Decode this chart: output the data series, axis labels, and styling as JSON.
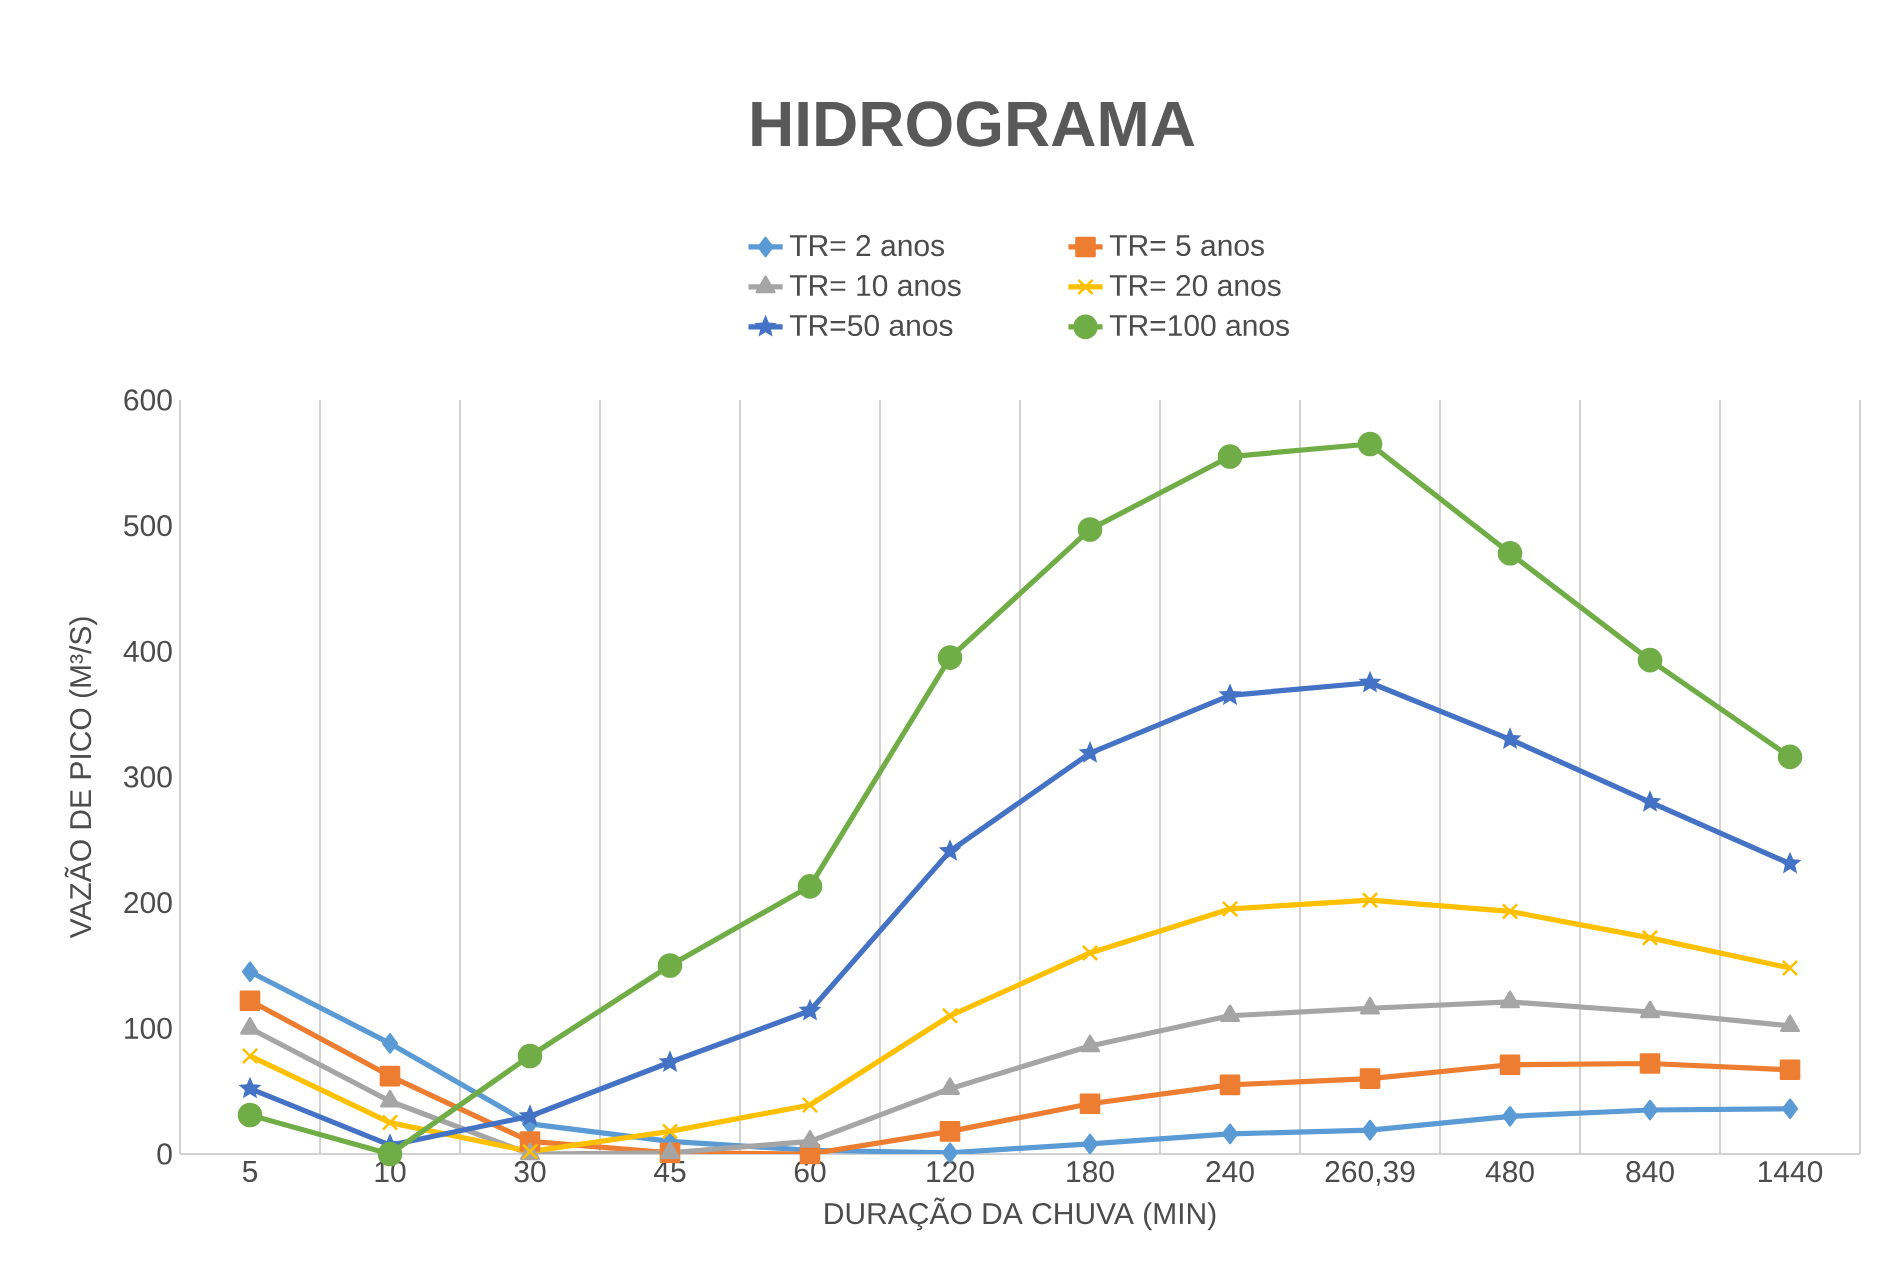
{
  "chart_data": {
    "type": "line",
    "title": "HIDROGRAMA",
    "xlabel": "DURAÇÃO DA CHUVA (MIN)",
    "ylabel": "VAZÃO DE PICO (M³/S)",
    "categories": [
      "5",
      "10",
      "30",
      "45",
      "60",
      "120",
      "180",
      "240",
      "260,39",
      "480",
      "840",
      "1440"
    ],
    "ylim": [
      0,
      600
    ],
    "yticks": [
      0,
      100,
      200,
      300,
      400,
      500,
      600
    ],
    "grid": "x",
    "legend": "top",
    "series": [
      {
        "name": "TR= 2 anos",
        "color": "#5b9bd5",
        "marker": "diamond",
        "values": [
          145,
          88,
          24,
          10,
          3,
          1,
          8,
          16,
          19,
          30,
          35,
          36
        ]
      },
      {
        "name": "TR= 5 anos",
        "color": "#ed7d31",
        "marker": "square",
        "values": [
          122,
          62,
          10,
          1,
          0,
          18,
          40,
          55,
          60,
          71,
          72,
          67
        ]
      },
      {
        "name": "TR= 10 anos",
        "color": "#a5a5a5",
        "marker": "triangle",
        "values": [
          100,
          42,
          0,
          1,
          10,
          52,
          86,
          110,
          116,
          121,
          113,
          102
        ]
      },
      {
        "name": "TR= 20 anos",
        "color": "#ffc000",
        "marker": "cross",
        "values": [
          78,
          25,
          2,
          18,
          39,
          110,
          160,
          195,
          202,
          193,
          172,
          148
        ]
      },
      {
        "name": "TR=50 anos",
        "color": "#4472c4",
        "marker": "star",
        "values": [
          52,
          7,
          30,
          73,
          114,
          241,
          319,
          365,
          375,
          330,
          280,
          231
        ]
      },
      {
        "name": "TR=100 anos",
        "color": "#70ad47",
        "marker": "circle",
        "values": [
          31,
          0,
          78,
          150,
          213,
          395,
          497,
          555,
          565,
          478,
          393,
          316
        ]
      }
    ]
  }
}
